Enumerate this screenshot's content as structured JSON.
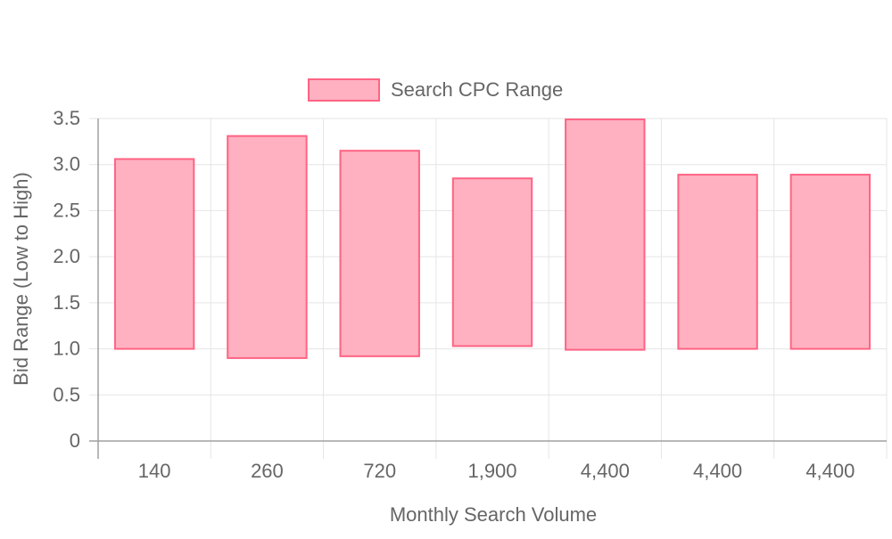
{
  "chart_data": {
    "type": "bar",
    "subtype": "floating-range",
    "title": "",
    "xlabel": "Monthly Search Volume",
    "ylabel": "Bid Range (Low to High)",
    "categories": [
      "140",
      "260",
      "720",
      "1,900",
      "4,400",
      "4,400",
      "4,400"
    ],
    "series": [
      {
        "name": "Search CPC Range",
        "ranges": [
          [
            1.0,
            3.06
          ],
          [
            0.9,
            3.31
          ],
          [
            0.92,
            3.15
          ],
          [
            1.03,
            2.85
          ],
          [
            0.99,
            3.49
          ],
          [
            1.0,
            2.89
          ],
          [
            1.0,
            2.89
          ]
        ]
      }
    ],
    "ylim": [
      0,
      3.5
    ],
    "yticks": [
      "0",
      "0.5",
      "1.0",
      "1.5",
      "2.0",
      "2.5",
      "3.0",
      "3.5"
    ],
    "grid": true,
    "legend_position": "top-center",
    "colors": {
      "bar_fill": "#ffb1c1",
      "bar_stroke": "#ff6384",
      "grid": "#e5e5e5",
      "axis": "#a0a0a0",
      "text": "#666666"
    }
  }
}
